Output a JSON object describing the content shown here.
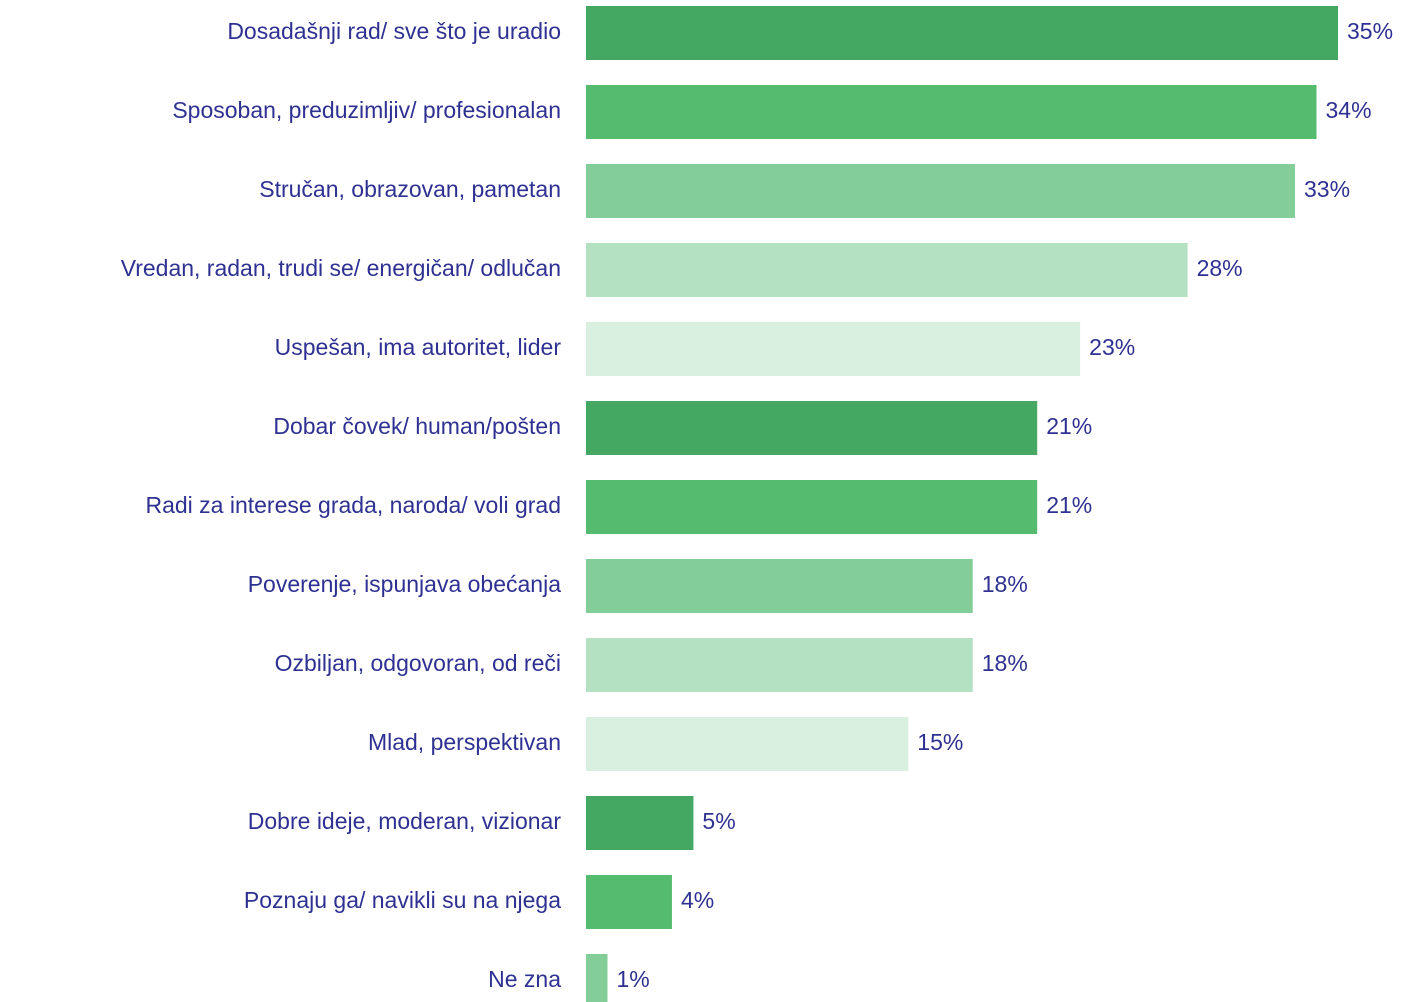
{
  "chart_data": {
    "type": "bar",
    "orientation": "horizontal",
    "categories": [
      "Dosadašnji rad/ sve što je uradio",
      "Sposoban, preduzimljiv/ profesionalan",
      "Stručan, obrazovan, pametan",
      "Vredan, radan, trudi se/ energičan/ odlučan",
      "Uspešan, ima autoritet, lider",
      "Dobar čovek/ human/pošten",
      "Radi za interese grada, naroda/ voli grad",
      "Poverenje, ispunjava obećanja",
      "Ozbiljan, odgovoran, od reči",
      "Mlad, perspektivan",
      "Dobre ideje, moderan, vizionar",
      "Poznaju ga/ navikli su na njega",
      "Ne zna"
    ],
    "values": [
      35,
      34,
      33,
      28,
      23,
      21,
      21,
      18,
      18,
      15,
      5,
      4,
      1
    ],
    "value_labels": [
      "35%",
      "34%",
      "33%",
      "28%",
      "23%",
      "21%",
      "21%",
      "18%",
      "18%",
      "15%",
      "5%",
      "4%",
      "1%"
    ],
    "colors": [
      "#44a862",
      "#55bb6f",
      "#82cd98",
      "#b3e1c1",
      "#d9f0e0",
      "#44a862",
      "#55bb6f",
      "#82cd98",
      "#b3e1c1",
      "#d9f0e0",
      "#44a862",
      "#55bb6f",
      "#82cd98"
    ]
  }
}
